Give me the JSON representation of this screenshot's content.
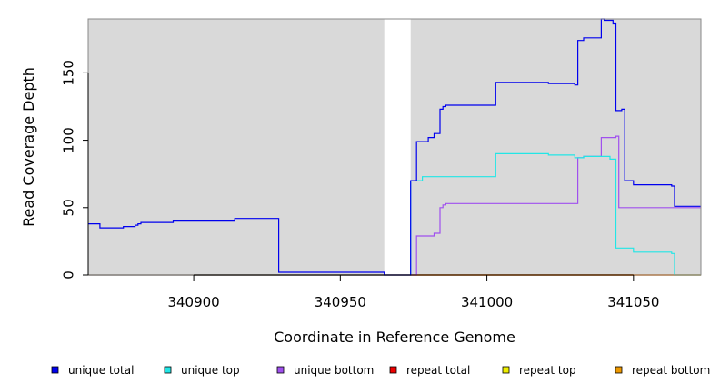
{
  "chart_data": {
    "type": "line",
    "title": "",
    "xlabel": "Coordinate in Reference Genome",
    "ylabel": "Read Coverage Depth",
    "xlim": [
      340864,
      341073
    ],
    "ylim": [
      0,
      190
    ],
    "x_ticks": [
      340900,
      340950,
      341000,
      341050
    ],
    "x_tick_labels": [
      "340900",
      "340950",
      "341000",
      "341050"
    ],
    "y_ticks": [
      0,
      50,
      100,
      150
    ],
    "y_tick_labels": [
      "0",
      "50",
      "100",
      "150"
    ],
    "gap_region": [
      340965,
      340974
    ],
    "legend_position": "bottom",
    "series": [
      {
        "name": "unique total",
        "color": "#0000ee",
        "points": [
          [
            340864,
            38
          ],
          [
            340868,
            35
          ],
          [
            340876,
            36
          ],
          [
            340880,
            37
          ],
          [
            340881,
            38
          ],
          [
            340882,
            39
          ],
          [
            340893,
            40
          ],
          [
            340914,
            42
          ],
          [
            340929,
            2
          ],
          [
            340965,
            0
          ],
          [
            340974,
            70
          ],
          [
            340976,
            99
          ],
          [
            340980,
            102
          ],
          [
            340982,
            105
          ],
          [
            340984,
            123
          ],
          [
            340985,
            125
          ],
          [
            340986,
            126
          ],
          [
            341003,
            143
          ],
          [
            341021,
            142
          ],
          [
            341030,
            141
          ],
          [
            341031,
            174
          ],
          [
            341033,
            176
          ],
          [
            341039,
            190
          ],
          [
            341040,
            189
          ],
          [
            341043,
            187
          ],
          [
            341044,
            122
          ],
          [
            341046,
            123
          ],
          [
            341047,
            70
          ],
          [
            341050,
            67
          ],
          [
            341063,
            66
          ],
          [
            341064,
            51
          ],
          [
            341073,
            51
          ]
        ]
      },
      {
        "name": "unique top",
        "color": "#22e6e6",
        "points": [
          [
            340864,
            0
          ],
          [
            340965,
            0
          ],
          [
            340974,
            70
          ],
          [
            340978,
            73
          ],
          [
            341003,
            90
          ],
          [
            341021,
            89
          ],
          [
            341030,
            87
          ],
          [
            341033,
            88
          ],
          [
            341039,
            88
          ],
          [
            341042,
            86
          ],
          [
            341044,
            20
          ],
          [
            341050,
            17
          ],
          [
            341063,
            16
          ],
          [
            341064,
            0
          ],
          [
            341073,
            0
          ]
        ]
      },
      {
        "name": "unique bottom",
        "color": "#a050ee",
        "points": [
          [
            340864,
            0
          ],
          [
            340965,
            0
          ],
          [
            340976,
            29
          ],
          [
            340982,
            31
          ],
          [
            340984,
            50
          ],
          [
            340985,
            52
          ],
          [
            340986,
            53
          ],
          [
            341030,
            53
          ],
          [
            341031,
            87
          ],
          [
            341033,
            88
          ],
          [
            341039,
            102
          ],
          [
            341044,
            103
          ],
          [
            341045,
            50
          ],
          [
            341073,
            50
          ]
        ]
      },
      {
        "name": "repeat total",
        "color": "#ee0000",
        "points": [
          [
            340864,
            0
          ],
          [
            341073,
            0
          ]
        ]
      },
      {
        "name": "repeat top",
        "color": "#eeee00",
        "points": [
          [
            340864,
            0
          ],
          [
            341073,
            0
          ]
        ]
      },
      {
        "name": "repeat bottom",
        "color": "#ee9900",
        "points": [
          [
            340864,
            0
          ],
          [
            341073,
            0
          ]
        ]
      }
    ]
  }
}
